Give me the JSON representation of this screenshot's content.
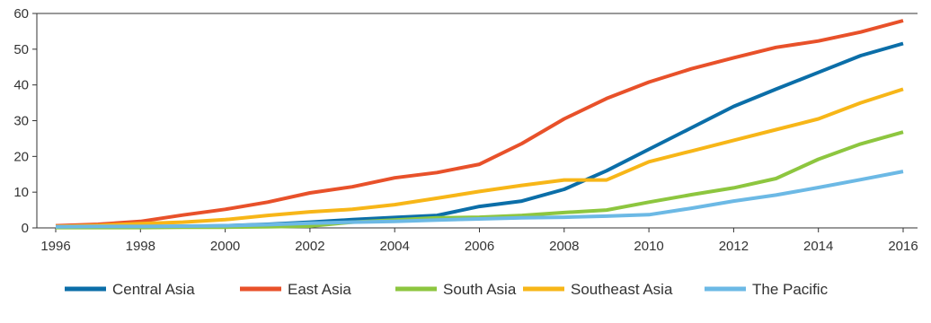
{
  "chart_data": {
    "type": "line",
    "title": "",
    "xlabel": "",
    "ylabel": "",
    "x": [
      1996,
      1997,
      1998,
      1999,
      2000,
      2001,
      2002,
      2003,
      2004,
      2005,
      2006,
      2007,
      2008,
      2009,
      2010,
      2011,
      2012,
      2013,
      2014,
      2015,
      2016
    ],
    "xlim": [
      1996,
      2016
    ],
    "ylim": [
      0,
      60
    ],
    "x_ticks": [
      "1996",
      "1998",
      "2000",
      "2002",
      "2004",
      "2006",
      "2008",
      "2010",
      "2012",
      "2014",
      "2016"
    ],
    "y_ticks": [
      "0",
      "10",
      "20",
      "30",
      "40",
      "50",
      "60"
    ],
    "grid": false,
    "legend_position": "bottom",
    "series": [
      {
        "name": "Central Asia",
        "color": "#0B6EA8",
        "values": [
          0.2,
          0.2,
          0.3,
          0.4,
          0.6,
          1.0,
          1.6,
          2.3,
          2.9,
          3.5,
          6.0,
          7.5,
          10.8,
          16.0,
          22.0,
          28.0,
          34.0,
          38.8,
          43.5,
          48.2,
          51.6
        ]
      },
      {
        "name": "East Asia",
        "color": "#E8512A",
        "values": [
          0.6,
          1.0,
          1.8,
          3.6,
          5.2,
          7.2,
          9.8,
          11.5,
          14.0,
          15.5,
          17.8,
          23.6,
          30.5,
          36.2,
          40.8,
          44.5,
          47.6,
          50.5,
          52.3,
          54.8,
          58.0
        ]
      },
      {
        "name": "South Asia",
        "color": "#8DC63F",
        "values": [
          0.1,
          0.1,
          0.1,
          0.2,
          0.2,
          0.3,
          0.5,
          1.6,
          2.2,
          2.8,
          3.0,
          3.5,
          4.3,
          5.0,
          7.2,
          9.3,
          11.2,
          13.8,
          19.2,
          23.5,
          26.8
        ]
      },
      {
        "name": "Southeast Asia",
        "color": "#F7B618",
        "values": [
          0.4,
          0.7,
          1.2,
          1.6,
          2.3,
          3.5,
          4.5,
          5.2,
          6.5,
          8.3,
          10.2,
          11.9,
          13.4,
          13.4,
          18.5,
          21.5,
          24.5,
          27.5,
          30.5,
          35.0,
          38.8
        ]
      },
      {
        "name": "The Pacific",
        "color": "#6CB9E5",
        "values": [
          0.3,
          0.4,
          0.4,
          0.5,
          0.6,
          0.9,
          1.3,
          1.6,
          1.8,
          2.2,
          2.5,
          2.8,
          3.0,
          3.3,
          3.7,
          5.5,
          7.5,
          9.2,
          11.3,
          13.5,
          15.8
        ]
      }
    ]
  }
}
